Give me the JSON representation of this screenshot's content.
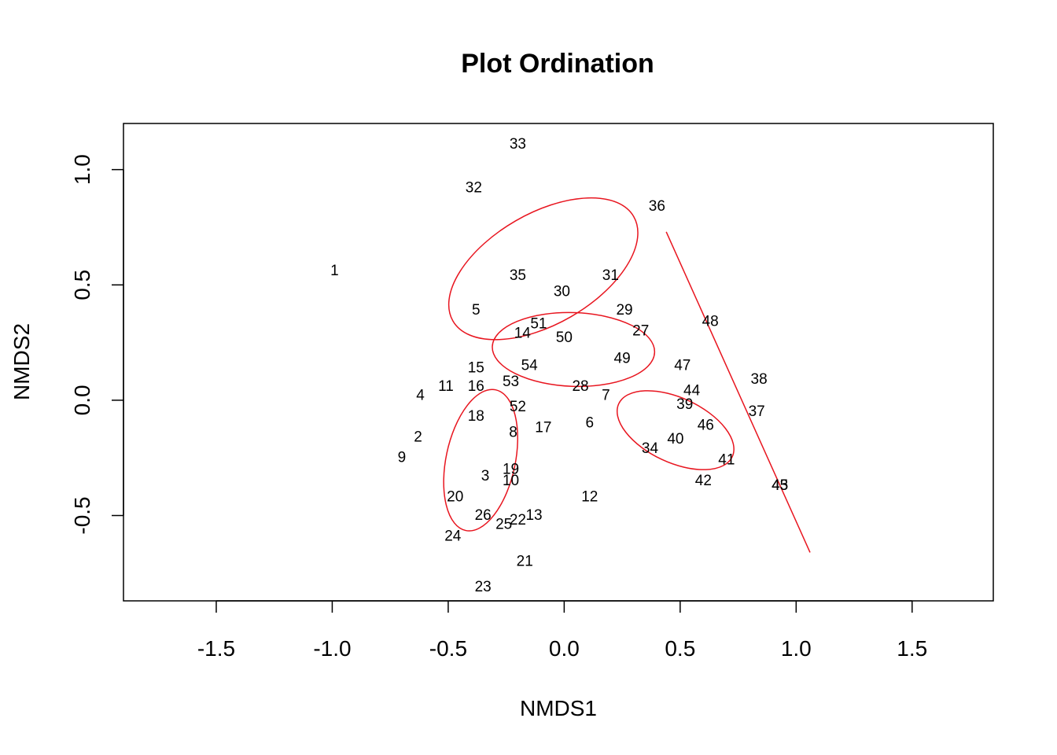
{
  "chart_data": {
    "type": "scatter",
    "title": "Plot Ordination",
    "xlabel": "NMDS1",
    "ylabel": "NMDS2",
    "xlim": [
      -1.9,
      1.85
    ],
    "ylim": [
      -0.87,
      1.2
    ],
    "x_ticks": [
      -1.5,
      -1.0,
      -0.5,
      0.0,
      0.5,
      1.0,
      1.5
    ],
    "x_tick_labels": [
      "-1.5",
      "-1.0",
      "-0.5",
      "0.0",
      "0.5",
      "1.0",
      "1.5"
    ],
    "y_ticks": [
      -0.5,
      0.0,
      0.5,
      1.0
    ],
    "y_tick_labels": [
      "-0.5",
      "0.0",
      "0.5",
      "1.0"
    ],
    "grid": false,
    "legend": "none",
    "overlay_color": "#e8151f",
    "points": [
      {
        "label": "1",
        "x": -0.99,
        "y": 0.56
      },
      {
        "label": "2",
        "x": -0.63,
        "y": -0.16
      },
      {
        "label": "3",
        "x": -0.34,
        "y": -0.33
      },
      {
        "label": "4",
        "x": -0.62,
        "y": 0.02
      },
      {
        "label": "5",
        "x": -0.38,
        "y": 0.39
      },
      {
        "label": "6",
        "x": 0.11,
        "y": -0.1
      },
      {
        "label": "7",
        "x": 0.18,
        "y": 0.02
      },
      {
        "label": "8",
        "x": -0.22,
        "y": -0.14
      },
      {
        "label": "9",
        "x": -0.7,
        "y": -0.25
      },
      {
        "label": "10",
        "x": -0.23,
        "y": -0.35
      },
      {
        "label": "11",
        "x": -0.51,
        "y": 0.06
      },
      {
        "label": "12",
        "x": 0.11,
        "y": -0.42
      },
      {
        "label": "13",
        "x": -0.13,
        "y": -0.5
      },
      {
        "label": "14",
        "x": -0.18,
        "y": 0.29
      },
      {
        "label": "15",
        "x": -0.38,
        "y": 0.14
      },
      {
        "label": "16",
        "x": -0.38,
        "y": 0.06
      },
      {
        "label": "17",
        "x": -0.09,
        "y": -0.12
      },
      {
        "label": "18",
        "x": -0.38,
        "y": -0.07
      },
      {
        "label": "19",
        "x": -0.23,
        "y": -0.3
      },
      {
        "label": "20",
        "x": -0.47,
        "y": -0.42
      },
      {
        "label": "21",
        "x": -0.17,
        "y": -0.7
      },
      {
        "label": "22",
        "x": -0.2,
        "y": -0.52
      },
      {
        "label": "23",
        "x": -0.35,
        "y": -0.81
      },
      {
        "label": "24",
        "x": -0.48,
        "y": -0.59
      },
      {
        "label": "25",
        "x": -0.26,
        "y": -0.54
      },
      {
        "label": "26",
        "x": -0.35,
        "y": -0.5
      },
      {
        "label": "27",
        "x": 0.33,
        "y": 0.3
      },
      {
        "label": "28",
        "x": 0.07,
        "y": 0.06
      },
      {
        "label": "29",
        "x": 0.26,
        "y": 0.39
      },
      {
        "label": "30",
        "x": -0.01,
        "y": 0.47
      },
      {
        "label": "31",
        "x": 0.2,
        "y": 0.54
      },
      {
        "label": "32",
        "x": -0.39,
        "y": 0.92
      },
      {
        "label": "33",
        "x": -0.2,
        "y": 1.11
      },
      {
        "label": "34",
        "x": 0.37,
        "y": -0.21
      },
      {
        "label": "35",
        "x": -0.2,
        "y": 0.54
      },
      {
        "label": "36",
        "x": 0.4,
        "y": 0.84
      },
      {
        "label": "37",
        "x": 0.83,
        "y": -0.05
      },
      {
        "label": "38",
        "x": 0.84,
        "y": 0.09
      },
      {
        "label": "39",
        "x": 0.52,
        "y": -0.02
      },
      {
        "label": "40",
        "x": 0.48,
        "y": -0.17
      },
      {
        "label": "41",
        "x": 0.7,
        "y": -0.26
      },
      {
        "label": "42",
        "x": 0.6,
        "y": -0.35
      },
      {
        "label": "43",
        "x": 0.93,
        "y": -0.37
      },
      {
        "label": "44",
        "x": 0.55,
        "y": 0.04
      },
      {
        "label": "45",
        "x": 0.93,
        "y": -0.37
      },
      {
        "label": "46",
        "x": 0.61,
        "y": -0.11
      },
      {
        "label": "47",
        "x": 0.51,
        "y": 0.15
      },
      {
        "label": "48",
        "x": 0.63,
        "y": 0.34
      },
      {
        "label": "49",
        "x": 0.25,
        "y": 0.18
      },
      {
        "label": "50",
        "x": 0.0,
        "y": 0.27
      },
      {
        "label": "51",
        "x": -0.11,
        "y": 0.33
      },
      {
        "label": "52",
        "x": -0.2,
        "y": -0.03
      },
      {
        "label": "53",
        "x": -0.23,
        "y": 0.08
      },
      {
        "label": "54",
        "x": -0.15,
        "y": 0.15
      }
    ],
    "ellipses": [
      {
        "cx": -0.09,
        "cy": 0.57,
        "rx": 0.45,
        "ry": 0.24,
        "angle_deg": -30
      },
      {
        "cx": 0.04,
        "cy": 0.22,
        "rx": 0.35,
        "ry": 0.16,
        "angle_deg": 2
      },
      {
        "cx": -0.36,
        "cy": -0.26,
        "rx": 0.31,
        "ry": 0.15,
        "angle_deg": -78
      },
      {
        "cx": 0.48,
        "cy": -0.13,
        "rx": 0.27,
        "ry": 0.14,
        "angle_deg": 25
      }
    ],
    "line": {
      "x": [
        0.44,
        1.06
      ],
      "y": [
        0.73,
        -0.66
      ]
    }
  }
}
